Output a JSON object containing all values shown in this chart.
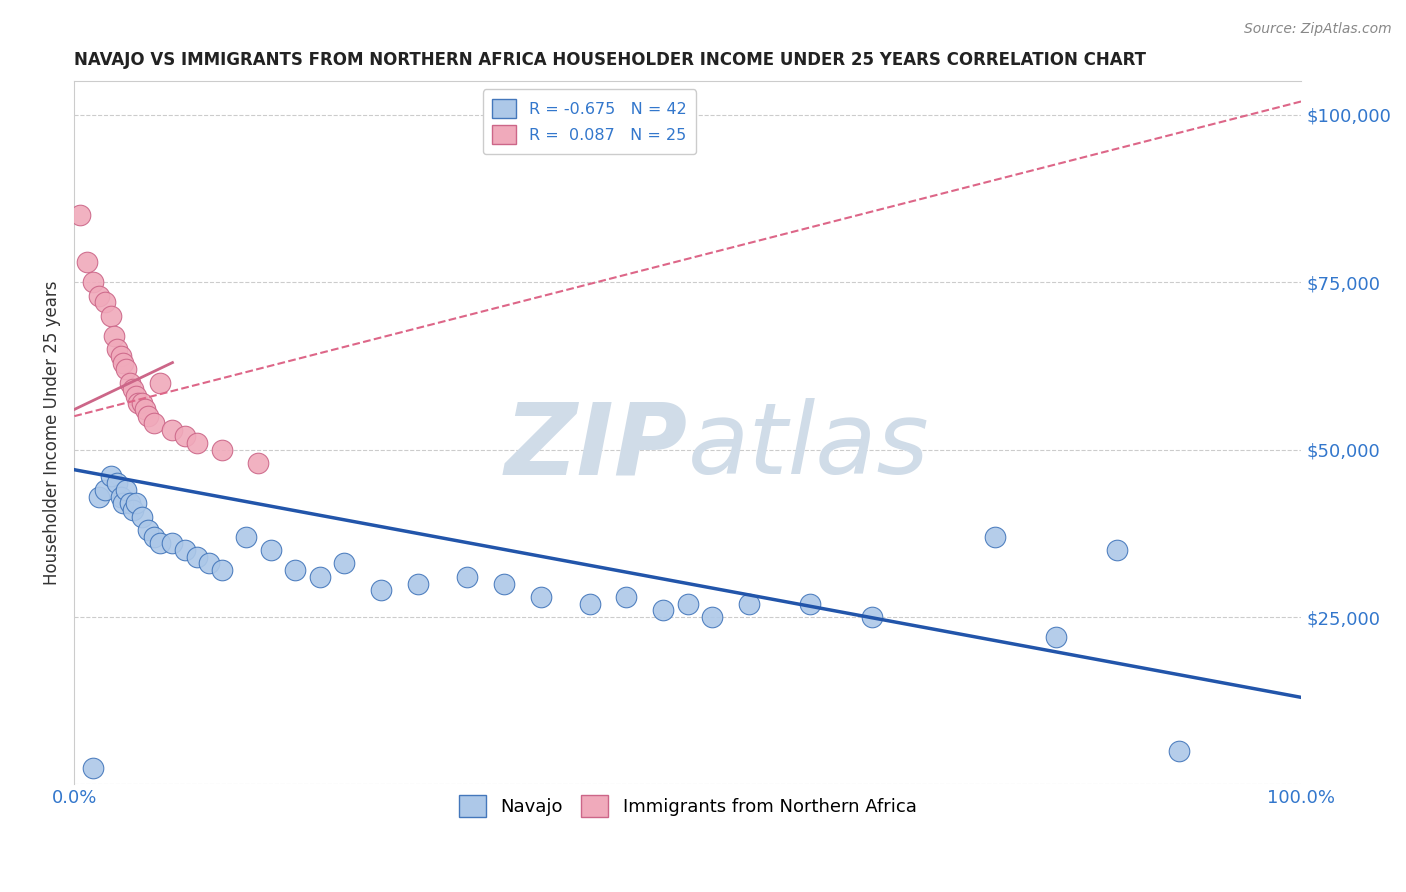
{
  "title": "NAVAJO VS IMMIGRANTS FROM NORTHERN AFRICA HOUSEHOLDER INCOME UNDER 25 YEARS CORRELATION CHART",
  "source": "Source: ZipAtlas.com",
  "ylabel": "Householder Income Under 25 years",
  "xlim": [
    0,
    100
  ],
  "ylim": [
    0,
    105000
  ],
  "yticks": [
    0,
    25000,
    50000,
    75000,
    100000
  ],
  "navajo_R": -0.675,
  "navajo_N": 42,
  "immig_R": 0.087,
  "immig_N": 25,
  "navajo_color": "#adc8e8",
  "navajo_edge_color": "#4477bb",
  "navajo_line_color": "#2255aa",
  "immig_color": "#f0aabb",
  "immig_edge_color": "#cc6688",
  "immig_line_color": "#dd6688",
  "watermark_color": "#d0dce8",
  "navajo_x": [
    1.5,
    2.0,
    2.5,
    3.0,
    3.5,
    3.8,
    4.0,
    4.2,
    4.5,
    4.8,
    5.0,
    5.5,
    6.0,
    6.5,
    7.0,
    8.0,
    9.0,
    10.0,
    11.0,
    12.0,
    14.0,
    16.0,
    18.0,
    20.0,
    22.0,
    25.0,
    28.0,
    32.0,
    35.0,
    38.0,
    42.0,
    45.0,
    48.0,
    50.0,
    52.0,
    55.0,
    60.0,
    65.0,
    75.0,
    80.0,
    85.0,
    90.0
  ],
  "navajo_y": [
    2500,
    43000,
    44000,
    46000,
    45000,
    43000,
    42000,
    44000,
    42000,
    41000,
    42000,
    40000,
    38000,
    37000,
    36000,
    36000,
    35000,
    34000,
    33000,
    32000,
    37000,
    35000,
    32000,
    31000,
    33000,
    29000,
    30000,
    31000,
    30000,
    28000,
    27000,
    28000,
    26000,
    27000,
    25000,
    27000,
    27000,
    25000,
    37000,
    22000,
    35000,
    5000
  ],
  "immig_x": [
    0.5,
    1.0,
    1.5,
    2.0,
    2.5,
    3.0,
    3.2,
    3.5,
    3.8,
    4.0,
    4.2,
    4.5,
    4.8,
    5.0,
    5.2,
    5.5,
    5.8,
    6.0,
    6.5,
    7.0,
    8.0,
    9.0,
    10.0,
    12.0,
    15.0
  ],
  "immig_y": [
    85000,
    78000,
    75000,
    73000,
    72000,
    70000,
    67000,
    65000,
    64000,
    63000,
    62000,
    60000,
    59000,
    58000,
    57000,
    57000,
    56000,
    55000,
    54000,
    60000,
    53000,
    52000,
    51000,
    50000,
    48000
  ],
  "navajo_line_x0": 0,
  "navajo_line_x1": 100,
  "navajo_line_y0": 47000,
  "navajo_line_y1": 13000,
  "immig_line_x0": 0,
  "immig_line_x1": 100,
  "immig_line_y0": 55000,
  "immig_line_y1": 102000
}
